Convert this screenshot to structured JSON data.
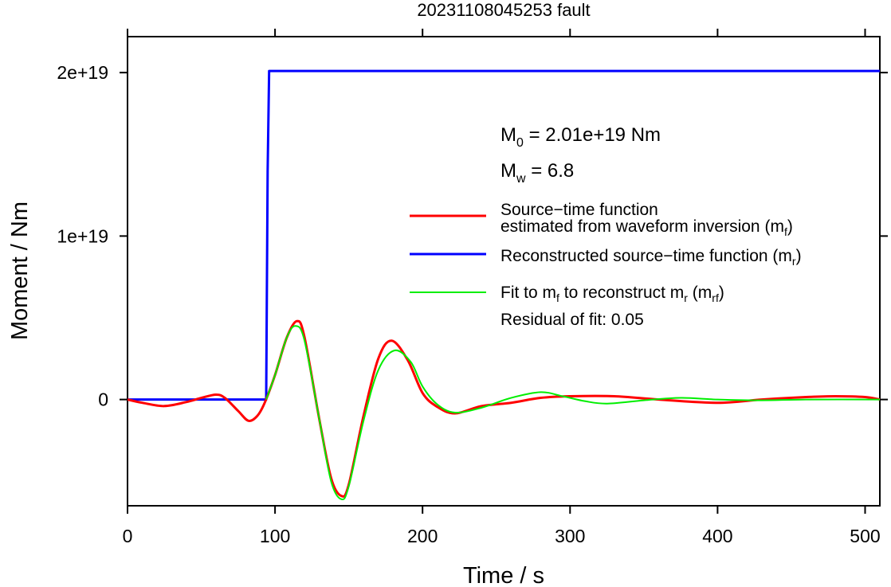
{
  "chart_data": {
    "type": "line",
    "title": "20231108045253 fault",
    "xlabel": "Time / s",
    "ylabel": "Moment / Nm",
    "xlim": [
      0,
      510
    ],
    "ylim": [
      -6.5e+18,
      2.22e+19
    ],
    "x_ticks": [
      0,
      100,
      200,
      300,
      400,
      500
    ],
    "x_tick_labels": [
      "0",
      "100",
      "200",
      "300",
      "400",
      "500"
    ],
    "y_ticks": [
      0,
      1e+19,
      2e+19
    ],
    "y_tick_labels": [
      "0",
      "1e+19",
      "2e+19"
    ],
    "grid": false,
    "legend_position": "right",
    "annotations": {
      "m0": {
        "base": "M",
        "sub": "0",
        "rest": " = 2.01e+19 Nm"
      },
      "mw": {
        "base": "M",
        "sub": "w",
        "rest": " = 6.8"
      },
      "residual": "Residual of fit: 0.05"
    },
    "legend": [
      {
        "color": "#ff0000",
        "line1": "Source−time function",
        "line2_pre": "estimated from waveform inversion (m",
        "line2_sub": "f",
        "line2_post": ")"
      },
      {
        "color": "#0000ff",
        "pre": "Reconstructed source−time function (m",
        "sub": "r",
        "post": ")"
      },
      {
        "color": "#00ee00",
        "pre": "Fit to m",
        "sub": "f",
        "mid": " to reconstruct m",
        "sub2": "r",
        "mid2": " (m",
        "sub3": "rf",
        "post": ")"
      }
    ],
    "series": [
      {
        "color": "#ff0000",
        "x": [
          0,
          10,
          25,
          40,
          50,
          60,
          66,
          75,
          82,
          88,
          93,
          100,
          108,
          115,
          120,
          130,
          138,
          145,
          150,
          160,
          170,
          179,
          190,
          200,
          210,
          222,
          240,
          260,
          280,
          300,
          330,
          360,
          400,
          430,
          460,
          480,
          500,
          510
        ],
        "y": [
          0,
          -2e+17,
          -4e+17,
          -1.5e+17,
          1e+17,
          3e+17,
          1e+17,
          -7e+17,
          -1.3e+18,
          -1e+18,
          -2e+17,
          1.5e+18,
          3.8e+18,
          4.8e+18,
          3.8e+18,
          -1.2e+18,
          -4.8e+18,
          -5.9e+18,
          -5.2e+18,
          -1e+18,
          2.5e+18,
          3.6e+18,
          2.4e+18,
          4e+17,
          -4.5e+17,
          -8.5e+17,
          -4e+17,
          -2e+17,
          1e+17,
          2e+17,
          2e+17,
          0,
          -2e+17,
          0,
          1.5e+17,
          2e+17,
          1.5e+17,
          0
        ]
      },
      {
        "color": "#0000ff",
        "x": [
          0,
          94,
          95,
          96,
          510
        ],
        "y": [
          0,
          0,
          1.4e+19,
          2.01e+19,
          2.01e+19
        ]
      },
      {
        "color": "#00ee00",
        "x": [
          94,
          100,
          108,
          114,
          120,
          130,
          138,
          145,
          150,
          160,
          170,
          181,
          192,
          200,
          210,
          222,
          240,
          260,
          280,
          295,
          310,
          325,
          350,
          375,
          400,
          430,
          460,
          510
        ],
        "y": [
          0,
          1.5e+18,
          3.8e+18,
          4.5e+18,
          3.6e+18,
          -1.2e+18,
          -5e+18,
          -6.1e+18,
          -5.3e+18,
          -1.3e+18,
          1.8e+18,
          3e+18,
          2.3e+18,
          8e+17,
          -3e+17,
          -8e+17,
          -5e+17,
          1e+17,
          4.5e+17,
          2e+17,
          -1e+17,
          -2.5e+17,
          -5e+16,
          1e+17,
          0,
          -5e+16,
          0,
          0
        ]
      }
    ]
  }
}
